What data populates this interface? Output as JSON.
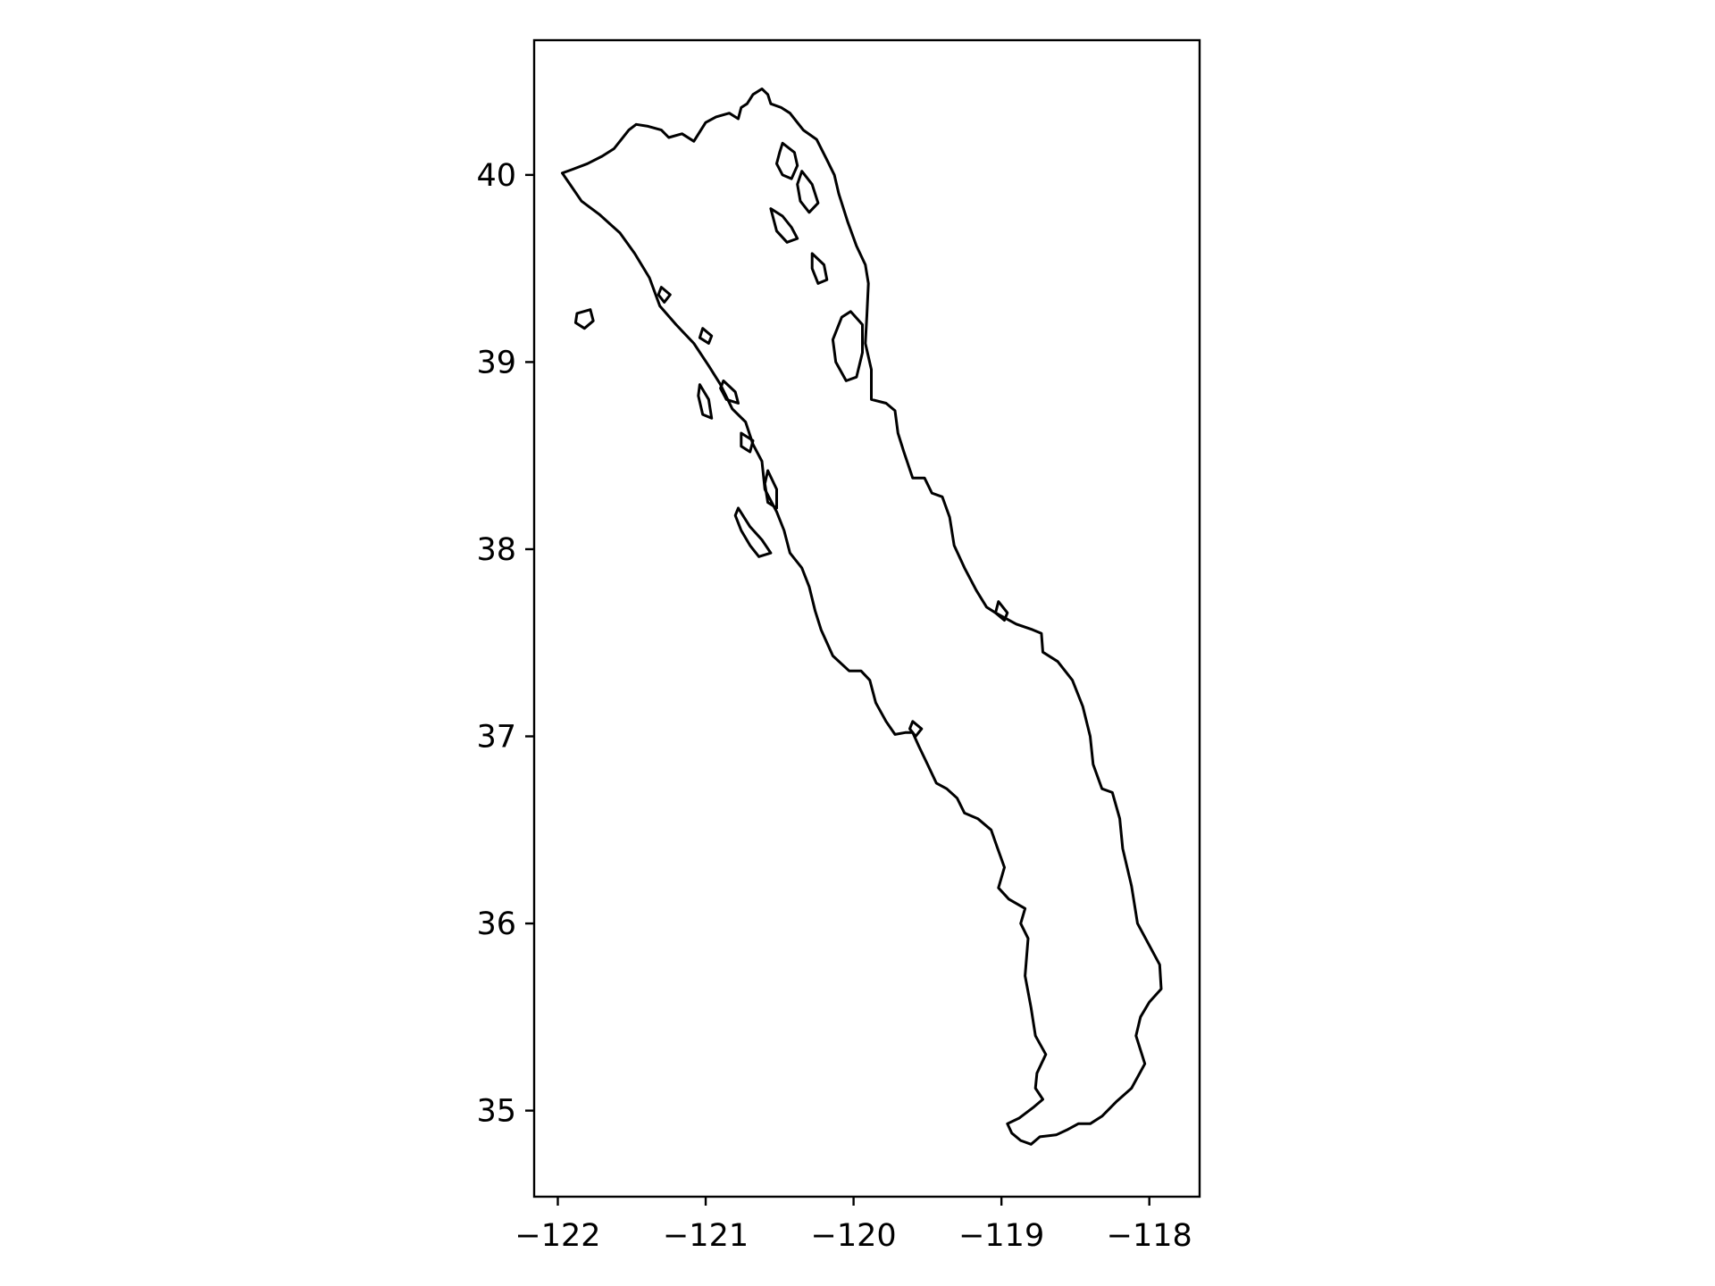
{
  "chart_data": {
    "type": "map",
    "xlim": [
      -122.16,
      -117.66
    ],
    "ylim": [
      34.54,
      40.72
    ],
    "grid": false,
    "x_ticks": [
      {
        "value": -122,
        "label": "−122"
      },
      {
        "value": -121,
        "label": "−121"
      },
      {
        "value": -120,
        "label": "−120"
      },
      {
        "value": -119,
        "label": "−119"
      },
      {
        "value": -118,
        "label": "−118"
      }
    ],
    "y_ticks": [
      {
        "value": 35,
        "label": "35"
      },
      {
        "value": 36,
        "label": "36"
      },
      {
        "value": 37,
        "label": "37"
      },
      {
        "value": 38,
        "label": "38"
      },
      {
        "value": 39,
        "label": "39"
      },
      {
        "value": 40,
        "label": "40"
      }
    ],
    "colors": {
      "outline": "#000000",
      "background": "#ffffff"
    },
    "outline": [
      [
        -121.97,
        40.01
      ],
      [
        -121.9,
        40.03
      ],
      [
        -121.8,
        40.06
      ],
      [
        -121.7,
        40.1
      ],
      [
        -121.62,
        40.14
      ],
      [
        -121.57,
        40.19
      ],
      [
        -121.52,
        40.24
      ],
      [
        -121.47,
        40.27
      ],
      [
        -121.39,
        40.26
      ],
      [
        -121.3,
        40.24
      ],
      [
        -121.25,
        40.2
      ],
      [
        -121.16,
        40.22
      ],
      [
        -121.08,
        40.18
      ],
      [
        -121.0,
        40.28
      ],
      [
        -120.93,
        40.31
      ],
      [
        -120.84,
        40.33
      ],
      [
        -120.78,
        40.3
      ],
      [
        -120.76,
        40.36
      ],
      [
        -120.72,
        40.38
      ],
      [
        -120.68,
        40.43
      ],
      [
        -120.62,
        40.46
      ],
      [
        -120.58,
        40.43
      ],
      [
        -120.56,
        40.38
      ],
      [
        -120.49,
        40.36
      ],
      [
        -120.43,
        40.33
      ],
      [
        -120.34,
        40.24
      ],
      [
        -120.25,
        40.19
      ],
      [
        -120.18,
        40.08
      ],
      [
        -120.13,
        40.0
      ],
      [
        -120.1,
        39.9
      ],
      [
        -120.04,
        39.75
      ],
      [
        -119.98,
        39.62
      ],
      [
        -119.92,
        39.52
      ],
      [
        -119.9,
        39.42
      ],
      [
        -119.91,
        39.25
      ],
      [
        -119.92,
        39.1
      ],
      [
        -119.88,
        38.96
      ],
      [
        -119.88,
        38.8
      ],
      [
        -119.78,
        38.78
      ],
      [
        -119.72,
        38.74
      ],
      [
        -119.7,
        38.62
      ],
      [
        -119.66,
        38.52
      ],
      [
        -119.6,
        38.38
      ],
      [
        -119.52,
        38.38
      ],
      [
        -119.47,
        38.3
      ],
      [
        -119.4,
        38.28
      ],
      [
        -119.35,
        38.17
      ],
      [
        -119.32,
        38.02
      ],
      [
        -119.25,
        37.9
      ],
      [
        -119.17,
        37.78
      ],
      [
        -119.1,
        37.69
      ],
      [
        -119.04,
        37.66
      ],
      [
        -118.9,
        37.6
      ],
      [
        -118.79,
        37.57
      ],
      [
        -118.73,
        37.55
      ],
      [
        -118.72,
        37.45
      ],
      [
        -118.62,
        37.4
      ],
      [
        -118.52,
        37.3
      ],
      [
        -118.45,
        37.16
      ],
      [
        -118.4,
        37.0
      ],
      [
        -118.38,
        36.85
      ],
      [
        -118.32,
        36.72
      ],
      [
        -118.25,
        36.7
      ],
      [
        -118.2,
        36.56
      ],
      [
        -118.18,
        36.4
      ],
      [
        -118.12,
        36.2
      ],
      [
        -118.08,
        36.0
      ],
      [
        -117.93,
        35.78
      ],
      [
        -117.92,
        35.65
      ],
      [
        -118.0,
        35.58
      ],
      [
        -118.06,
        35.5
      ],
      [
        -118.09,
        35.4
      ],
      [
        -118.05,
        35.3
      ],
      [
        -118.03,
        35.25
      ],
      [
        -118.12,
        35.12
      ],
      [
        -118.22,
        35.05
      ],
      [
        -118.32,
        34.97
      ],
      [
        -118.4,
        34.93
      ],
      [
        -118.48,
        34.93
      ],
      [
        -118.55,
        34.9
      ],
      [
        -118.63,
        34.87
      ],
      [
        -118.74,
        34.86
      ],
      [
        -118.8,
        34.82
      ],
      [
        -118.87,
        34.84
      ],
      [
        -118.93,
        34.88
      ],
      [
        -118.96,
        34.93
      ],
      [
        -118.88,
        34.96
      ],
      [
        -118.78,
        35.02
      ],
      [
        -118.72,
        35.06
      ],
      [
        -118.77,
        35.12
      ],
      [
        -118.76,
        35.2
      ],
      [
        -118.7,
        35.3
      ],
      [
        -118.77,
        35.4
      ],
      [
        -118.8,
        35.55
      ],
      [
        -118.84,
        35.72
      ],
      [
        -118.82,
        35.92
      ],
      [
        -118.87,
        36.0
      ],
      [
        -118.84,
        36.08
      ],
      [
        -118.95,
        36.13
      ],
      [
        -119.02,
        36.19
      ],
      [
        -118.98,
        36.3
      ],
      [
        -119.03,
        36.41
      ],
      [
        -119.07,
        36.5
      ],
      [
        -119.16,
        36.56
      ],
      [
        -119.25,
        36.59
      ],
      [
        -119.3,
        36.67
      ],
      [
        -119.37,
        36.72
      ],
      [
        -119.44,
        36.75
      ],
      [
        -119.5,
        36.85
      ],
      [
        -119.56,
        36.95
      ],
      [
        -119.6,
        37.02
      ],
      [
        -119.65,
        37.02
      ],
      [
        -119.72,
        37.01
      ],
      [
        -119.78,
        37.08
      ],
      [
        -119.85,
        37.18
      ],
      [
        -119.89,
        37.3
      ],
      [
        -119.95,
        37.35
      ],
      [
        -120.03,
        37.35
      ],
      [
        -120.14,
        37.43
      ],
      [
        -120.22,
        37.57
      ],
      [
        -120.26,
        37.67
      ],
      [
        -120.3,
        37.8
      ],
      [
        -120.35,
        37.9
      ],
      [
        -120.43,
        37.98
      ],
      [
        -120.47,
        38.1
      ],
      [
        -120.52,
        38.2
      ],
      [
        -120.6,
        38.32
      ],
      [
        -120.62,
        38.47
      ],
      [
        -120.68,
        38.56
      ],
      [
        -120.73,
        38.68
      ],
      [
        -120.82,
        38.75
      ],
      [
        -120.9,
        38.88
      ],
      [
        -120.98,
        38.98
      ],
      [
        -121.08,
        39.1
      ],
      [
        -121.2,
        39.2
      ],
      [
        -121.31,
        39.3
      ],
      [
        -121.38,
        39.45
      ],
      [
        -121.48,
        39.58
      ],
      [
        -121.58,
        39.69
      ],
      [
        -121.72,
        39.79
      ],
      [
        -121.84,
        39.86
      ],
      [
        -121.97,
        40.01
      ]
    ],
    "holes": [
      [
        [
          -120.48,
          40.17
        ],
        [
          -120.4,
          40.12
        ],
        [
          -120.38,
          40.05
        ],
        [
          -120.42,
          39.98
        ],
        [
          -120.48,
          40.0
        ],
        [
          -120.52,
          40.06
        ],
        [
          -120.5,
          40.12
        ],
        [
          -120.48,
          40.17
        ]
      ],
      [
        [
          -120.35,
          40.02
        ],
        [
          -120.28,
          39.95
        ],
        [
          -120.24,
          39.85
        ],
        [
          -120.3,
          39.8
        ],
        [
          -120.36,
          39.86
        ],
        [
          -120.38,
          39.95
        ],
        [
          -120.35,
          40.02
        ]
      ],
      [
        [
          -120.56,
          39.82
        ],
        [
          -120.48,
          39.78
        ],
        [
          -120.42,
          39.72
        ],
        [
          -120.38,
          39.66
        ],
        [
          -120.45,
          39.64
        ],
        [
          -120.52,
          39.7
        ],
        [
          -120.56,
          39.82
        ]
      ],
      [
        [
          -120.28,
          39.58
        ],
        [
          -120.2,
          39.52
        ],
        [
          -120.18,
          39.44
        ],
        [
          -120.24,
          39.42
        ],
        [
          -120.28,
          39.5
        ],
        [
          -120.28,
          39.58
        ]
      ],
      [
        [
          -120.02,
          39.27
        ],
        [
          -119.94,
          39.2
        ],
        [
          -119.94,
          39.05
        ],
        [
          -119.98,
          38.92
        ],
        [
          -120.05,
          38.9
        ],
        [
          -120.12,
          39.0
        ],
        [
          -120.14,
          39.12
        ],
        [
          -120.08,
          39.24
        ],
        [
          -120.02,
          39.27
        ]
      ],
      [
        [
          -121.87,
          39.26
        ],
        [
          -121.78,
          39.28
        ],
        [
          -121.76,
          39.22
        ],
        [
          -121.82,
          39.18
        ],
        [
          -121.88,
          39.21
        ],
        [
          -121.87,
          39.26
        ]
      ],
      [
        [
          -121.3,
          39.4
        ],
        [
          -121.24,
          39.36
        ],
        [
          -121.28,
          39.32
        ],
        [
          -121.32,
          39.36
        ],
        [
          -121.3,
          39.4
        ]
      ],
      [
        [
          -121.02,
          39.18
        ],
        [
          -120.96,
          39.14
        ],
        [
          -120.98,
          39.1
        ],
        [
          -121.04,
          39.13
        ],
        [
          -121.02,
          39.18
        ]
      ],
      [
        [
          -121.04,
          38.88
        ],
        [
          -120.98,
          38.8
        ],
        [
          -120.96,
          38.7
        ],
        [
          -121.02,
          38.72
        ],
        [
          -121.05,
          38.82
        ],
        [
          -121.04,
          38.88
        ]
      ],
      [
        [
          -120.88,
          38.9
        ],
        [
          -120.8,
          38.84
        ],
        [
          -120.78,
          38.78
        ],
        [
          -120.86,
          38.8
        ],
        [
          -120.9,
          38.86
        ],
        [
          -120.88,
          38.9
        ]
      ],
      [
        [
          -120.76,
          38.62
        ],
        [
          -120.68,
          38.58
        ],
        [
          -120.7,
          38.52
        ],
        [
          -120.76,
          38.55
        ],
        [
          -120.76,
          38.62
        ]
      ],
      [
        [
          -120.58,
          38.42
        ],
        [
          -120.52,
          38.32
        ],
        [
          -120.52,
          38.22
        ],
        [
          -120.58,
          38.25
        ],
        [
          -120.6,
          38.35
        ],
        [
          -120.58,
          38.42
        ]
      ],
      [
        [
          -120.78,
          38.22
        ],
        [
          -120.7,
          38.12
        ],
        [
          -120.62,
          38.05
        ],
        [
          -120.56,
          37.98
        ],
        [
          -120.64,
          37.96
        ],
        [
          -120.7,
          38.02
        ],
        [
          -120.76,
          38.1
        ],
        [
          -120.8,
          38.18
        ],
        [
          -120.78,
          38.22
        ]
      ],
      [
        [
          -119.6,
          37.08
        ],
        [
          -119.54,
          37.04
        ],
        [
          -119.58,
          37.0
        ],
        [
          -119.62,
          37.04
        ],
        [
          -119.6,
          37.08
        ]
      ],
      [
        [
          -119.02,
          37.72
        ],
        [
          -118.96,
          37.66
        ],
        [
          -118.98,
          37.62
        ],
        [
          -119.04,
          37.66
        ],
        [
          -119.02,
          37.72
        ]
      ]
    ]
  }
}
